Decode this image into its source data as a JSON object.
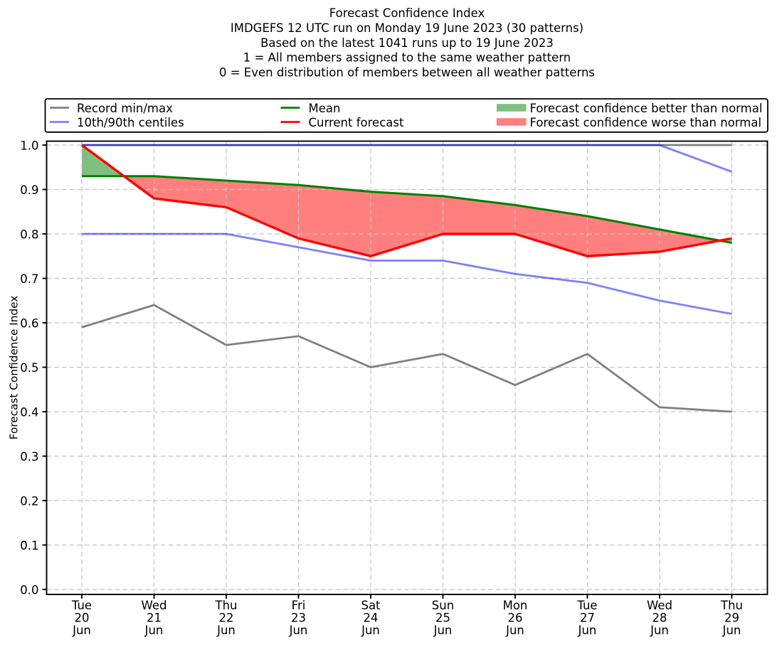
{
  "title": {
    "lines": [
      "Forecast Confidence Index",
      "IMDGEFS 12 UTC run on Monday 19 June 2023 (30 patterns)",
      "Based on the latest 1041 runs up to 19 June 2023",
      "1 = All members assigned to the same weather pattern",
      "0 = Even distribution of members between all weather patterns"
    ]
  },
  "legend": {
    "position": "top",
    "items": [
      {
        "label": "Record min/max",
        "swatch": "line",
        "color": "#808080",
        "opacity": 1
      },
      {
        "label": "10th/90th centiles",
        "swatch": "line",
        "color": "#0000ff",
        "opacity": 0.5
      },
      {
        "label": "Mean",
        "swatch": "line",
        "color": "#008000",
        "opacity": 1
      },
      {
        "label": "Current forecast",
        "swatch": "line",
        "color": "#ff0000",
        "opacity": 1
      },
      {
        "label": "Forecast confidence better than normal",
        "swatch": "patch",
        "color": "#008000",
        "opacity": 0.5
      },
      {
        "label": "Forecast confidence worse than normal",
        "swatch": "patch",
        "color": "#ff0000",
        "opacity": 0.5
      }
    ]
  },
  "chart_data": {
    "type": "line",
    "title": "Forecast Confidence Index",
    "ylabel": "Forecast Confidence Index",
    "xlabel": "",
    "ylim": [
      0.0,
      1.0
    ],
    "grid": true,
    "y_ticks": [
      0.0,
      0.1,
      0.2,
      0.3,
      0.4,
      0.5,
      0.6,
      0.7,
      0.8,
      0.9,
      1.0
    ],
    "y_tick_labels": [
      "0.0",
      "0.1",
      "0.2",
      "0.3",
      "0.4",
      "0.5",
      "0.6",
      "0.7",
      "0.8",
      "0.9",
      "1.0"
    ],
    "categories": [
      "Tue 20 Jun",
      "Wed 21 Jun",
      "Thu 22 Jun",
      "Fri 23 Jun",
      "Sat 24 Jun",
      "Sun 25 Jun",
      "Mon 26 Jun",
      "Tue 27 Jun",
      "Wed 28 Jun",
      "Thu 29 Jun"
    ],
    "x_tick_labels": [
      [
        "Tue",
        "20",
        "Jun"
      ],
      [
        "Wed",
        "21",
        "Jun"
      ],
      [
        "Thu",
        "22",
        "Jun"
      ],
      [
        "Fri",
        "23",
        "Jun"
      ],
      [
        "Sat",
        "24",
        "Jun"
      ],
      [
        "Sun",
        "25",
        "Jun"
      ],
      [
        "Mon",
        "26",
        "Jun"
      ],
      [
        "Tue",
        "27",
        "Jun"
      ],
      [
        "Wed",
        "28",
        "Jun"
      ],
      [
        "Thu",
        "29",
        "Jun"
      ]
    ],
    "series": [
      {
        "name": "Record max",
        "color": "#808080",
        "opacity": 1,
        "width": 2.8,
        "values": [
          1.0,
          1.0,
          1.0,
          1.0,
          1.0,
          1.0,
          1.0,
          1.0,
          1.0,
          1.0
        ]
      },
      {
        "name": "Record min",
        "color": "#808080",
        "opacity": 1,
        "width": 2.8,
        "values": [
          0.59,
          0.64,
          0.55,
          0.57,
          0.5,
          0.53,
          0.46,
          0.53,
          0.41,
          0.4
        ]
      },
      {
        "name": "90th centile",
        "color": "#0000ff",
        "opacity": 0.5,
        "width": 2.8,
        "values": [
          1.0,
          1.0,
          1.0,
          1.0,
          1.0,
          1.0,
          1.0,
          1.0,
          1.0,
          0.94
        ]
      },
      {
        "name": "10th centile",
        "color": "#0000ff",
        "opacity": 0.5,
        "width": 2.8,
        "values": [
          0.8,
          0.8,
          0.8,
          0.77,
          0.74,
          0.74,
          0.71,
          0.69,
          0.65,
          0.62
        ]
      },
      {
        "name": "Mean",
        "color": "#008000",
        "opacity": 1,
        "width": 3.1,
        "values": [
          0.93,
          0.93,
          0.92,
          0.91,
          0.895,
          0.885,
          0.865,
          0.84,
          0.81,
          0.78
        ]
      },
      {
        "name": "Current forecast",
        "color": "#ff0000",
        "opacity": 1,
        "width": 3.4,
        "values": [
          1.0,
          0.88,
          0.86,
          0.79,
          0.75,
          0.8,
          0.8,
          0.75,
          0.76,
          0.79
        ]
      }
    ],
    "fills": {
      "between": [
        "Current forecast",
        "Mean"
      ],
      "above": {
        "name": "Forecast confidence better than normal",
        "color": "#008000",
        "opacity": 0.5
      },
      "below": {
        "name": "Forecast confidence worse than normal",
        "color": "#ff0000",
        "opacity": 0.5
      }
    }
  }
}
